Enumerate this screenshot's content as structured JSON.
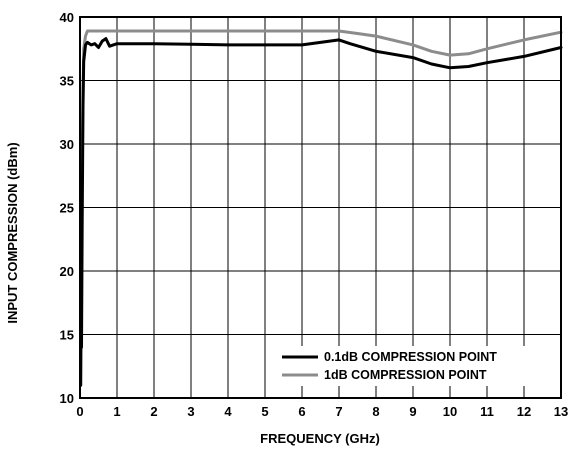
{
  "chart_data": {
    "type": "line",
    "xlabel": "FREQUENCY (GHz)",
    "ylabel": "INPUT COMPRESSION (dBm)",
    "xlim": [
      0,
      13
    ],
    "ylim": [
      10,
      40
    ],
    "xticks": [
      0,
      1,
      2,
      3,
      4,
      5,
      6,
      7,
      8,
      9,
      10,
      11,
      12,
      13
    ],
    "yticks": [
      10,
      15,
      20,
      25,
      30,
      35,
      40
    ],
    "grid": true,
    "legend_position": "bottom-right",
    "series": [
      {
        "name": "0.1dB COMPRESSION POINT",
        "color": "#000000",
        "points": [
          [
            0.02,
            11.0
          ],
          [
            0.03,
            16.4
          ],
          [
            0.04,
            14.0
          ],
          [
            0.06,
            24.0
          ],
          [
            0.08,
            33.0
          ],
          [
            0.1,
            36.5
          ],
          [
            0.15,
            37.8
          ],
          [
            0.2,
            38.0
          ],
          [
            0.3,
            37.8
          ],
          [
            0.4,
            37.9
          ],
          [
            0.5,
            37.6
          ],
          [
            0.6,
            38.1
          ],
          [
            0.7,
            38.3
          ],
          [
            0.8,
            37.7
          ],
          [
            0.9,
            37.8
          ],
          [
            1.0,
            37.9
          ],
          [
            2,
            37.9
          ],
          [
            3,
            37.85
          ],
          [
            4,
            37.8
          ],
          [
            5,
            37.8
          ],
          [
            6,
            37.8
          ],
          [
            6.5,
            38.0
          ],
          [
            7.0,
            38.2
          ],
          [
            7.3,
            37.9
          ],
          [
            8,
            37.3
          ],
          [
            9,
            36.8
          ],
          [
            9.5,
            36.3
          ],
          [
            10,
            36.0
          ],
          [
            10.5,
            36.1
          ],
          [
            11,
            36.4
          ],
          [
            12,
            36.9
          ],
          [
            13,
            37.6
          ]
        ]
      },
      {
        "name": "1dB COMPRESSION POINT",
        "color": "#8c8c8c",
        "points": [
          [
            0.03,
            14.0
          ],
          [
            0.05,
            26.0
          ],
          [
            0.08,
            34.0
          ],
          [
            0.1,
            37.5
          ],
          [
            0.15,
            38.5
          ],
          [
            0.2,
            38.9
          ],
          [
            0.5,
            38.9
          ],
          [
            1,
            38.9
          ],
          [
            2,
            38.9
          ],
          [
            3,
            38.9
          ],
          [
            4,
            38.9
          ],
          [
            5,
            38.9
          ],
          [
            6,
            38.9
          ],
          [
            7,
            38.9
          ],
          [
            7.5,
            38.7
          ],
          [
            8,
            38.5
          ],
          [
            9,
            37.8
          ],
          [
            9.5,
            37.3
          ],
          [
            10,
            37.0
          ],
          [
            10.5,
            37.1
          ],
          [
            11,
            37.5
          ],
          [
            12,
            38.2
          ],
          [
            13,
            38.8
          ]
        ]
      }
    ]
  }
}
